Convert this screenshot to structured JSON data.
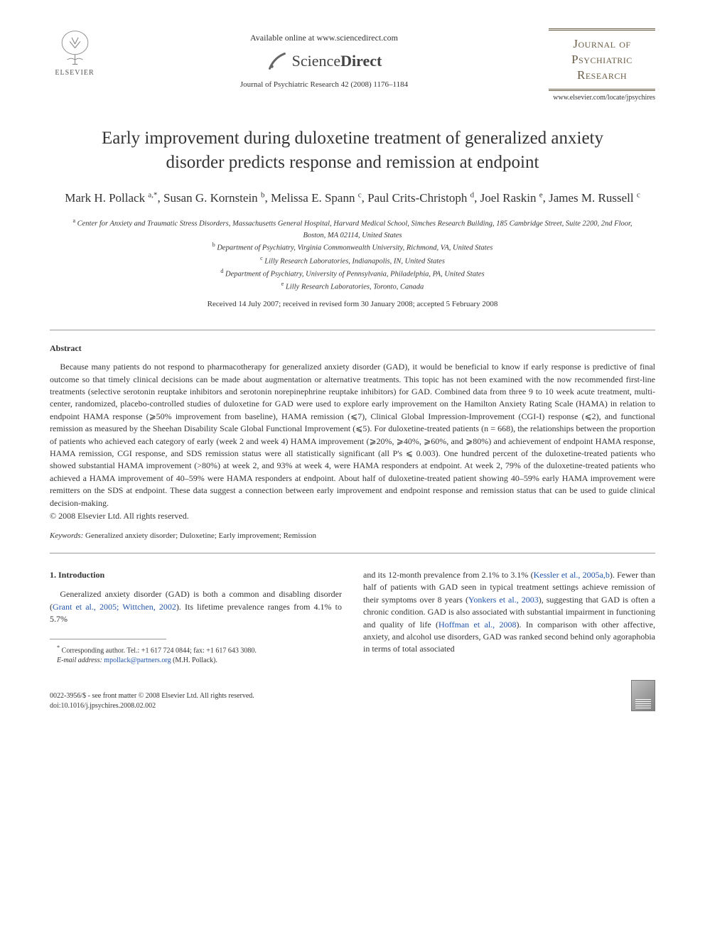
{
  "header": {
    "available_online": "Available online at www.sciencedirect.com",
    "sciencedirect": "ScienceDirect",
    "journal_citation": "Journal of Psychiatric Research 42 (2008) 1176–1184",
    "elsevier_label": "ELSEVIER",
    "journal_box_line1": "Journal of",
    "journal_box_line2": "Psychiatric",
    "journal_box_line3": "Research",
    "journal_url": "www.elsevier.com/locate/jpsychires"
  },
  "title": "Early improvement during duloxetine treatment of generalized anxiety disorder predicts response and remission at endpoint",
  "authors_html": "Mark H. Pollack <sup>a,*</sup>, Susan G. Kornstein <sup>b</sup>, Melissa E. Spann <sup>c</sup>, Paul Crits-Christoph <sup>d</sup>, Joel Raskin <sup>e</sup>, James M. Russell <sup>c</sup>",
  "affiliations": [
    {
      "sup": "a",
      "text": "Center for Anxiety and Traumatic Stress Disorders, Massachusetts General Hospital, Harvard Medical School, Simches Research Building, 185 Cambridge Street, Suite 2200, 2nd Floor, Boston, MA 02114, United States"
    },
    {
      "sup": "b",
      "text": "Department of Psychiatry, Virginia Commonwealth University, Richmond, VA, United States"
    },
    {
      "sup": "c",
      "text": "Lilly Research Laboratories, Indianapolis, IN, United States"
    },
    {
      "sup": "d",
      "text": "Department of Psychiatry, University of Pennsylvania, Philadelphia, PA, United States"
    },
    {
      "sup": "e",
      "text": "Lilly Research Laboratories, Toronto, Canada"
    }
  ],
  "dates": "Received 14 July 2007; received in revised form 30 January 2008; accepted 5 February 2008",
  "abstract": {
    "heading": "Abstract",
    "body": "Because many patients do not respond to pharmacotherapy for generalized anxiety disorder (GAD), it would be beneficial to know if early response is predictive of final outcome so that timely clinical decisions can be made about augmentation or alternative treatments. This topic has not been examined with the now recommended first-line treatments (selective serotonin reuptake inhibitors and serotonin norepinephrine reuptake inhibitors) for GAD. Combined data from three 9 to 10 week acute treatment, multi-center, randomized, placebo-controlled studies of duloxetine for GAD were used to explore early improvement on the Hamilton Anxiety Rating Scale (HAMA) in relation to endpoint HAMA response (⩾50% improvement from baseline), HAMA remission (⩽7), Clinical Global Impression-Improvement (CGI-I) response (⩽2), and functional remission as measured by the Sheehan Disability Scale Global Functional Improvement (⩽5). For duloxetine-treated patients (n = 668), the relationships between the proportion of patients who achieved each category of early (week 2 and week 4) HAMA improvement (⩾20%, ⩾40%, ⩾60%, and ⩾80%) and achievement of endpoint HAMA response, HAMA remission, CGI response, and SDS remission status were all statistically significant (all P's ⩽ 0.003). One hundred percent of the duloxetine-treated patients who showed substantial HAMA improvement (>80%) at week 2, and 93% at week 4, were HAMA responders at endpoint. At week 2, 79% of the duloxetine-treated patients who achieved a HAMA improvement of 40–59% were HAMA responders at endpoint. About half of duloxetine-treated patient showing 40–59% early HAMA improvement were remitters on the SDS at endpoint. These data suggest a connection between early improvement and endpoint response and remission status that can be used to guide clinical decision-making.",
    "copyright": "© 2008 Elsevier Ltd. All rights reserved."
  },
  "keywords": {
    "label": "Keywords:",
    "text": "Generalized anxiety disorder; Duloxetine; Early improvement; Remission"
  },
  "intro": {
    "heading": "1. Introduction",
    "left_para_pre": "Generalized anxiety disorder (GAD) is both a common and disabling disorder (",
    "left_ref1": "Grant et al., 2005; Wittchen, 2002",
    "left_para_post": "). Its lifetime prevalence ranges from 4.1% to 5.7%",
    "right_para_pre": "and its 12-month prevalence from 2.1% to 3.1% (",
    "right_ref1": "Kessler et al., 2005a,b",
    "right_para_mid1": "). Fewer than half of patients with GAD seen in typical treatment settings achieve remission of their symptoms over 8 years (",
    "right_ref2": "Yonkers et al., 2003",
    "right_para_mid2": "), suggesting that GAD is often a chronic condition. GAD is also associated with substantial impairment in functioning and quality of life (",
    "right_ref3": "Hoffman et al., 2008",
    "right_para_post": "). In comparison with other affective, anxiety, and alcohol use disorders, GAD was ranked second behind only agoraphobia in terms of total associated"
  },
  "footnote": {
    "corresponding": "Corresponding author. Tel.: +1 617 724 0844; fax: +1 617 643 3080.",
    "email_label": "E-mail address:",
    "email": "mpollack@partners.org",
    "email_suffix": "(M.H. Pollack)."
  },
  "footer": {
    "issn": "0022-3956/$ - see front matter © 2008 Elsevier Ltd. All rights reserved.",
    "doi": "doi:10.1016/j.jpsychires.2008.02.002"
  },
  "colors": {
    "text": "#333333",
    "link": "#2255aa",
    "journal_box": "#6b5c45",
    "divider": "#999999"
  }
}
